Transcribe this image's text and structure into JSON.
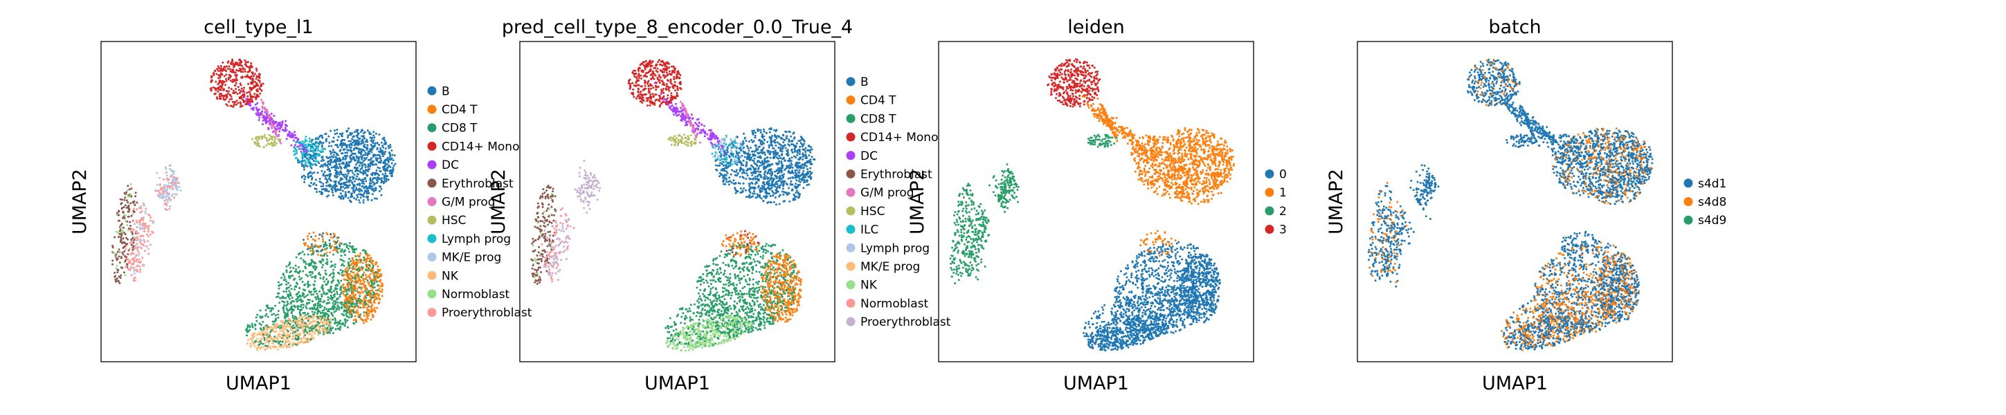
{
  "chart_data": [
    {
      "type": "scatter",
      "title": "cell_type_l1",
      "xlabel": "UMAP1",
      "ylabel": "UMAP2",
      "legend_position": "right",
      "grid": false,
      "series": [
        {
          "name": "B",
          "color": "#1f77b4"
        },
        {
          "name": "CD4 T",
          "color": "#ff7f0e"
        },
        {
          "name": "CD8 T",
          "color": "#279e68"
        },
        {
          "name": "CD14+ Mono",
          "color": "#d62728"
        },
        {
          "name": "DC",
          "color": "#aa40fc"
        },
        {
          "name": "Erythroblast",
          "color": "#8c564b"
        },
        {
          "name": "G/M prog",
          "color": "#e377c2"
        },
        {
          "name": "HSC",
          "color": "#b5bd61"
        },
        {
          "name": "Lymph prog",
          "color": "#17becf"
        },
        {
          "name": "MK/E prog",
          "color": "#aec7e8"
        },
        {
          "name": "NK",
          "color": "#ffbb78"
        },
        {
          "name": "Normoblast",
          "color": "#98df8a"
        },
        {
          "name": "Proerythroblast",
          "color": "#ff9896"
        }
      ]
    },
    {
      "type": "scatter",
      "title": "pred_cell_type_8_encoder_0.0_True_4",
      "xlabel": "UMAP1",
      "ylabel": "UMAP2",
      "legend_position": "right",
      "grid": false,
      "series": [
        {
          "name": "B",
          "color": "#1f77b4"
        },
        {
          "name": "CD4 T",
          "color": "#ff7f0e"
        },
        {
          "name": "CD8 T",
          "color": "#279e68"
        },
        {
          "name": "CD14+ Mono",
          "color": "#d62728"
        },
        {
          "name": "DC",
          "color": "#aa40fc"
        },
        {
          "name": "Erythroblast",
          "color": "#8c564b"
        },
        {
          "name": "G/M prog",
          "color": "#e377c2"
        },
        {
          "name": "HSC",
          "color": "#b5bd61"
        },
        {
          "name": "ILC",
          "color": "#17becf"
        },
        {
          "name": "Lymph prog",
          "color": "#aec7e8"
        },
        {
          "name": "MK/E prog",
          "color": "#ffbb78"
        },
        {
          "name": "NK",
          "color": "#98df8a"
        },
        {
          "name": "Normoblast",
          "color": "#ff9896"
        },
        {
          "name": "Proerythroblast",
          "color": "#c5b0d5"
        }
      ]
    },
    {
      "type": "scatter",
      "title": "leiden",
      "xlabel": "UMAP1",
      "ylabel": "UMAP2",
      "legend_position": "right",
      "grid": false,
      "series": [
        {
          "name": "0",
          "color": "#1f77b4"
        },
        {
          "name": "1",
          "color": "#ff7f0e"
        },
        {
          "name": "2",
          "color": "#279e68"
        },
        {
          "name": "3",
          "color": "#d62728"
        }
      ]
    },
    {
      "type": "scatter",
      "title": "batch",
      "xlabel": "UMAP1",
      "ylabel": "UMAP2",
      "legend_position": "right",
      "grid": false,
      "series": [
        {
          "name": "s4d1",
          "color": "#1f77b4"
        },
        {
          "name": "s4d8",
          "color": "#ff7f0e"
        },
        {
          "name": "s4d9",
          "color": "#279e68"
        }
      ]
    }
  ]
}
